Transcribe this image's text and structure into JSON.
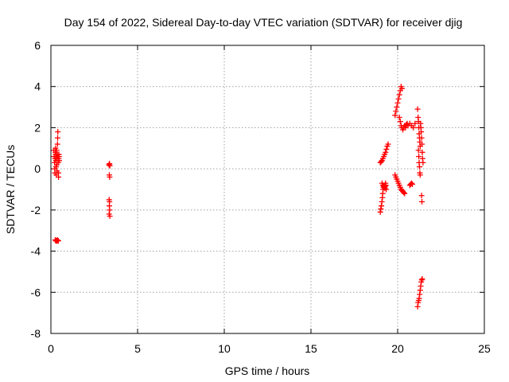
{
  "chart_data": {
    "type": "scatter",
    "title": "Day 154 of 2022, Sidereal Day-to-day VTEC variation (SDTVAR) for receiver djig",
    "xlabel": "GPS time / hours",
    "ylabel": "SDTVAR / TECUs",
    "xlim": [
      0,
      25
    ],
    "ylim": [
      -8,
      6
    ],
    "xticks": [
      0,
      5,
      10,
      15,
      20,
      25
    ],
    "yticks": [
      -8,
      -6,
      -4,
      -2,
      0,
      2,
      4,
      6
    ],
    "xtick_labels": [
      "0",
      "5",
      "10",
      "15",
      "20",
      "25"
    ],
    "ytick_labels": [
      "-8",
      "-6",
      "-4",
      "-2",
      "0",
      "2",
      "4",
      "6"
    ],
    "grid": true,
    "marker": "plus",
    "colors": {
      "points": "#ff0000",
      "grid": "#a0a0a0",
      "axes": "#000000"
    },
    "series": [
      {
        "name": "djig",
        "points": [
          [
            0.17,
            0.9
          ],
          [
            0.19,
            0.6
          ],
          [
            0.21,
            0.3
          ],
          [
            0.22,
            0.0
          ],
          [
            0.23,
            -0.2
          ],
          [
            0.24,
            0.5
          ],
          [
            0.26,
            0.8
          ],
          [
            0.27,
            1.0
          ],
          [
            0.28,
            0.7
          ],
          [
            0.29,
            0.4
          ],
          [
            0.3,
            0.1
          ],
          [
            0.31,
            -0.3
          ],
          [
            0.32,
            0.6
          ],
          [
            0.33,
            0.9
          ],
          [
            0.34,
            0.2
          ],
          [
            0.35,
            -0.1
          ],
          [
            0.36,
            0.5
          ],
          [
            0.37,
            0.7
          ],
          [
            0.38,
            1.2
          ],
          [
            0.39,
            1.5
          ],
          [
            0.4,
            1.8
          ],
          [
            0.41,
            0.6
          ],
          [
            0.42,
            0.3
          ],
          [
            0.43,
            -0.2
          ],
          [
            0.44,
            -0.4
          ],
          [
            0.45,
            0.5
          ],
          [
            0.46,
            0.7
          ],
          [
            0.47,
            0.6
          ],
          [
            0.48,
            0.4
          ],
          [
            0.25,
            -3.45
          ],
          [
            0.28,
            -3.5
          ],
          [
            0.31,
            -3.5
          ],
          [
            0.34,
            -3.5
          ],
          [
            0.37,
            -3.45
          ],
          [
            0.4,
            -3.5
          ],
          [
            0.43,
            -3.5
          ],
          [
            3.35,
            0.2
          ],
          [
            3.38,
            0.25
          ],
          [
            3.4,
            0.15
          ],
          [
            3.37,
            -0.3
          ],
          [
            3.39,
            -0.4
          ],
          [
            3.36,
            -1.5
          ],
          [
            3.38,
            -1.6
          ],
          [
            3.37,
            -1.8
          ],
          [
            3.39,
            -2.0
          ],
          [
            3.36,
            -2.2
          ],
          [
            3.4,
            -2.3
          ],
          [
            19.0,
            -2.1
          ],
          [
            19.03,
            -1.95
          ],
          [
            19.06,
            -1.8
          ],
          [
            19.09,
            -1.6
          ],
          [
            19.12,
            -1.4
          ],
          [
            19.14,
            -1.2
          ],
          [
            19.16,
            -1.0
          ],
          [
            19.18,
            -0.9
          ],
          [
            19.2,
            -0.85
          ],
          [
            19.22,
            -0.8
          ],
          [
            19.24,
            -0.9
          ],
          [
            19.26,
            -0.95
          ],
          [
            19.28,
            -0.85
          ],
          [
            19.3,
            -0.7
          ],
          [
            19.32,
            -0.8
          ],
          [
            19.34,
            -1.0
          ],
          [
            19.1,
            -0.7
          ],
          [
            19.14,
            -0.8
          ],
          [
            19.0,
            0.3
          ],
          [
            19.05,
            0.35
          ],
          [
            19.1,
            0.4
          ],
          [
            19.15,
            0.5
          ],
          [
            19.2,
            0.6
          ],
          [
            19.25,
            0.7
          ],
          [
            19.3,
            0.8
          ],
          [
            19.35,
            0.95
          ],
          [
            19.4,
            1.1
          ],
          [
            19.45,
            1.2
          ],
          [
            19.85,
            2.6
          ],
          [
            19.9,
            2.8
          ],
          [
            19.95,
            3.0
          ],
          [
            20.0,
            3.2
          ],
          [
            20.05,
            3.4
          ],
          [
            20.1,
            3.6
          ],
          [
            20.15,
            3.8
          ],
          [
            20.2,
            4.0
          ],
          [
            20.25,
            3.9
          ],
          [
            20.1,
            2.5
          ],
          [
            20.15,
            2.3
          ],
          [
            20.2,
            2.1
          ],
          [
            20.25,
            2.0
          ],
          [
            20.3,
            1.9
          ],
          [
            20.35,
            2.0
          ],
          [
            20.4,
            2.1
          ],
          [
            20.45,
            2.0
          ],
          [
            20.5,
            2.15
          ],
          [
            20.55,
            2.2
          ],
          [
            20.6,
            2.1
          ],
          [
            20.7,
            2.2
          ],
          [
            20.8,
            2.1
          ],
          [
            20.9,
            2.0
          ],
          [
            21.0,
            2.2
          ],
          [
            19.85,
            -0.3
          ],
          [
            19.9,
            -0.4
          ],
          [
            19.95,
            -0.5
          ],
          [
            20.0,
            -0.6
          ],
          [
            20.05,
            -0.7
          ],
          [
            20.1,
            -0.8
          ],
          [
            20.15,
            -0.9
          ],
          [
            20.2,
            -1.0
          ],
          [
            20.25,
            -1.05
          ],
          [
            20.3,
            -1.1
          ],
          [
            20.35,
            -1.15
          ],
          [
            20.4,
            -1.2
          ],
          [
            20.7,
            -0.8
          ],
          [
            20.75,
            -0.75
          ],
          [
            20.8,
            -0.7
          ],
          [
            20.85,
            -0.75
          ],
          [
            21.15,
            2.9
          ],
          [
            21.18,
            2.5
          ],
          [
            21.2,
            2.3
          ],
          [
            21.22,
            2.0
          ],
          [
            21.24,
            1.7
          ],
          [
            21.26,
            1.5
          ],
          [
            21.28,
            1.3
          ],
          [
            21.3,
            1.1
          ],
          [
            21.2,
            0.9
          ],
          [
            21.22,
            0.6
          ],
          [
            21.24,
            0.3
          ],
          [
            21.26,
            0.1
          ],
          [
            21.28,
            -0.2
          ],
          [
            21.3,
            -0.3
          ],
          [
            21.32,
            2.2
          ],
          [
            21.34,
            2.0
          ],
          [
            21.36,
            1.8
          ],
          [
            21.38,
            1.5
          ],
          [
            21.4,
            1.2
          ],
          [
            21.42,
            0.8
          ],
          [
            21.44,
            0.5
          ],
          [
            21.46,
            0.3
          ],
          [
            21.38,
            -1.3
          ],
          [
            21.4,
            -1.6
          ],
          [
            21.15,
            -6.7
          ],
          [
            21.18,
            -6.5
          ],
          [
            21.21,
            -6.4
          ],
          [
            21.24,
            -6.3
          ],
          [
            21.27,
            -6.1
          ],
          [
            21.3,
            -5.9
          ],
          [
            21.33,
            -5.7
          ],
          [
            21.36,
            -5.5
          ],
          [
            21.39,
            -5.4
          ],
          [
            21.42,
            -5.35
          ]
        ]
      }
    ]
  }
}
